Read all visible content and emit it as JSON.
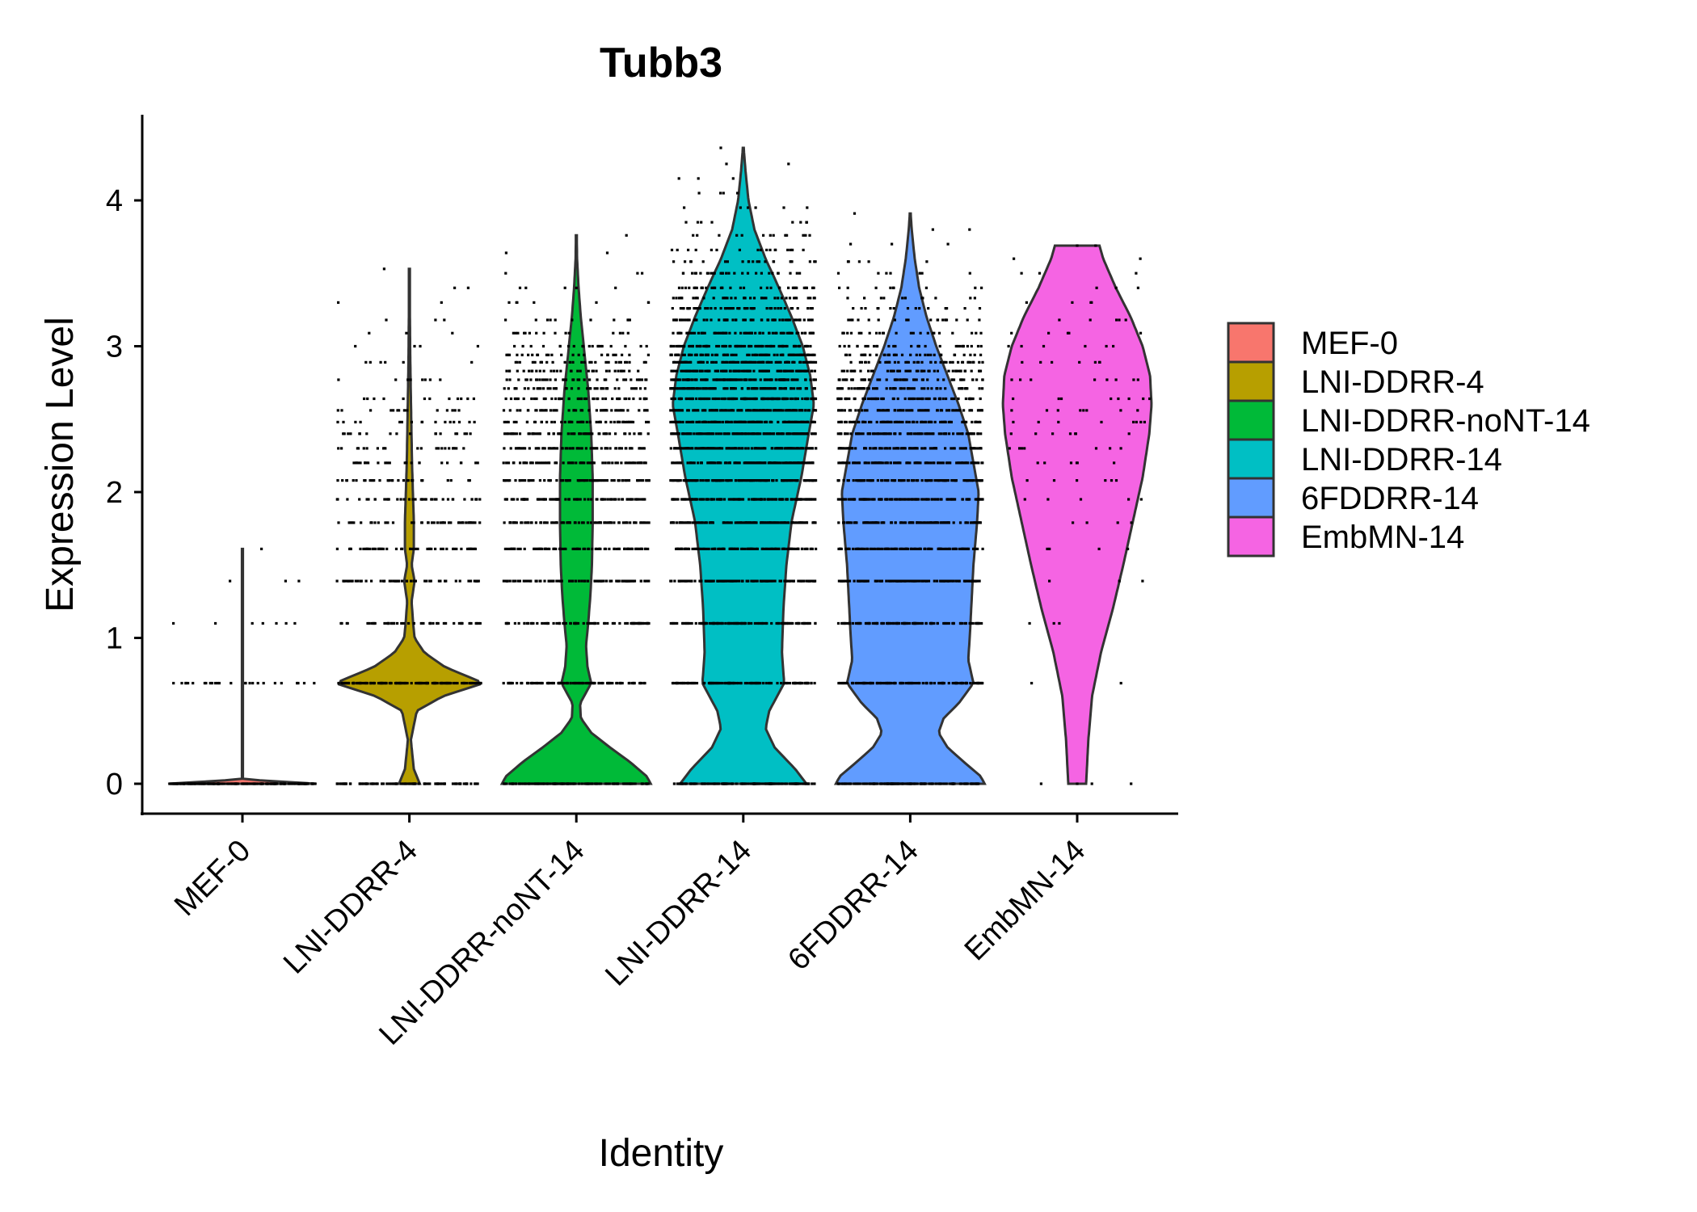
{
  "chart_data": {
    "type": "violin",
    "title": "Tubb3",
    "xlabel": "Identity",
    "ylabel": "Expression Level",
    "ylim": [
      -0.2,
      4.6
    ],
    "yticks": [
      0,
      1,
      2,
      3,
      4
    ],
    "grid": false,
    "legend_position": "right",
    "categories": [
      "MEF-0",
      "LNI-DDRR-4",
      "LNI-DDRR-noNT-14",
      "LNI-DDRR-14",
      "6FDDRR-14",
      "EmbMN-14"
    ],
    "series": [
      {
        "name": "MEF-0",
        "color": "#F8766D",
        "max": 1.61,
        "density_profile": [
          [
            0,
            1.0
          ],
          [
            0.03,
            0.0
          ],
          [
            1.61,
            0.0
          ]
        ],
        "point_levels": [
          [
            0,
            160
          ],
          [
            0.69,
            26
          ],
          [
            1.1,
            7
          ],
          [
            1.39,
            3
          ],
          [
            1.61,
            1
          ]
        ]
      },
      {
        "name": "LNI-DDRR-4",
        "color": "#B79F00",
        "max": 3.53,
        "density_profile": [
          [
            0,
            0.14
          ],
          [
            0.1,
            0.06
          ],
          [
            0.3,
            0.02
          ],
          [
            0.5,
            0.1
          ],
          [
            0.6,
            0.45
          ],
          [
            0.69,
            1.0
          ],
          [
            0.8,
            0.48
          ],
          [
            0.9,
            0.2
          ],
          [
            1.0,
            0.07
          ],
          [
            1.1,
            0.05
          ],
          [
            1.25,
            0.03
          ],
          [
            1.39,
            0.07
          ],
          [
            1.5,
            0.03
          ],
          [
            1.61,
            0.06
          ],
          [
            1.8,
            0.06
          ],
          [
            1.95,
            0.05
          ],
          [
            2.2,
            0.035
          ],
          [
            2.5,
            0.025
          ],
          [
            2.9,
            0.012
          ],
          [
            3.2,
            0.007
          ],
          [
            3.53,
            0.005
          ]
        ],
        "point_levels": [
          [
            0,
            90
          ],
          [
            0.69,
            120
          ],
          [
            1.1,
            45
          ],
          [
            1.39,
            55
          ],
          [
            1.61,
            50
          ],
          [
            1.79,
            45
          ],
          [
            1.95,
            38
          ],
          [
            2.08,
            30
          ],
          [
            2.2,
            26
          ],
          [
            2.3,
            22
          ],
          [
            2.4,
            18
          ],
          [
            2.48,
            16
          ],
          [
            2.56,
            14
          ],
          [
            2.64,
            12
          ],
          [
            2.77,
            8
          ],
          [
            2.89,
            6
          ],
          [
            3.0,
            4
          ],
          [
            3.09,
            3
          ],
          [
            3.18,
            3
          ],
          [
            3.3,
            2
          ],
          [
            3.4,
            2
          ],
          [
            3.53,
            1
          ]
        ]
      },
      {
        "name": "LNI-DDRR-noNT-14",
        "color": "#00BA38",
        "max": 3.76,
        "density_profile": [
          [
            0,
            1.0
          ],
          [
            0.05,
            0.95
          ],
          [
            0.15,
            0.72
          ],
          [
            0.25,
            0.45
          ],
          [
            0.35,
            0.2
          ],
          [
            0.45,
            0.06
          ],
          [
            0.55,
            0.05
          ],
          [
            0.69,
            0.2
          ],
          [
            0.8,
            0.15
          ],
          [
            0.95,
            0.13
          ],
          [
            1.1,
            0.16
          ],
          [
            1.3,
            0.19
          ],
          [
            1.5,
            0.21
          ],
          [
            1.8,
            0.22
          ],
          [
            2.1,
            0.22
          ],
          [
            2.4,
            0.2
          ],
          [
            2.7,
            0.16
          ],
          [
            3.0,
            0.1
          ],
          [
            3.2,
            0.06
          ],
          [
            3.4,
            0.03
          ],
          [
            3.6,
            0.01
          ],
          [
            3.76,
            0.005
          ]
        ],
        "point_levels": [
          [
            0,
            110
          ],
          [
            0.69,
            90
          ],
          [
            1.1,
            80
          ],
          [
            1.39,
            85
          ],
          [
            1.61,
            85
          ],
          [
            1.79,
            85
          ],
          [
            1.95,
            80
          ],
          [
            2.08,
            75
          ],
          [
            2.2,
            70
          ],
          [
            2.3,
            65
          ],
          [
            2.4,
            60
          ],
          [
            2.48,
            55
          ],
          [
            2.56,
            50
          ],
          [
            2.64,
            45
          ],
          [
            2.71,
            40
          ],
          [
            2.77,
            36
          ],
          [
            2.83,
            32
          ],
          [
            2.89,
            28
          ],
          [
            2.94,
            25
          ],
          [
            3.0,
            20
          ],
          [
            3.09,
            15
          ],
          [
            3.18,
            11
          ],
          [
            3.3,
            7
          ],
          [
            3.4,
            5
          ],
          [
            3.5,
            3
          ],
          [
            3.64,
            2
          ],
          [
            3.76,
            1
          ]
        ]
      },
      {
        "name": "LNI-DDRR-14",
        "color": "#00BFC4",
        "max": 4.36,
        "density_profile": [
          [
            0,
            0.85
          ],
          [
            0.1,
            0.7
          ],
          [
            0.25,
            0.42
          ],
          [
            0.38,
            0.3
          ],
          [
            0.5,
            0.35
          ],
          [
            0.69,
            0.55
          ],
          [
            0.9,
            0.52
          ],
          [
            1.2,
            0.54
          ],
          [
            1.5,
            0.58
          ],
          [
            1.8,
            0.65
          ],
          [
            2.1,
            0.78
          ],
          [
            2.4,
            0.88
          ],
          [
            2.6,
            0.95
          ],
          [
            2.8,
            0.9
          ],
          [
            3.0,
            0.8
          ],
          [
            3.2,
            0.65
          ],
          [
            3.4,
            0.48
          ],
          [
            3.6,
            0.3
          ],
          [
            3.8,
            0.15
          ],
          [
            4.0,
            0.07
          ],
          [
            4.2,
            0.03
          ],
          [
            4.36,
            0.005
          ]
        ],
        "point_levels": [
          [
            0,
            120
          ],
          [
            0.69,
            110
          ],
          [
            1.1,
            110
          ],
          [
            1.39,
            115
          ],
          [
            1.61,
            120
          ],
          [
            1.79,
            125
          ],
          [
            1.95,
            130
          ],
          [
            2.08,
            130
          ],
          [
            2.2,
            130
          ],
          [
            2.3,
            130
          ],
          [
            2.4,
            130
          ],
          [
            2.48,
            125
          ],
          [
            2.56,
            120
          ],
          [
            2.64,
            115
          ],
          [
            2.71,
            110
          ],
          [
            2.77,
            105
          ],
          [
            2.83,
            100
          ],
          [
            2.89,
            95
          ],
          [
            2.94,
            90
          ],
          [
            3.0,
            80
          ],
          [
            3.09,
            70
          ],
          [
            3.18,
            60
          ],
          [
            3.26,
            50
          ],
          [
            3.33,
            42
          ],
          [
            3.4,
            35
          ],
          [
            3.5,
            28
          ],
          [
            3.58,
            22
          ],
          [
            3.66,
            17
          ],
          [
            3.76,
            13
          ],
          [
            3.85,
            9
          ],
          [
            3.95,
            6
          ],
          [
            4.05,
            4
          ],
          [
            4.15,
            3
          ],
          [
            4.25,
            2
          ],
          [
            4.36,
            1
          ]
        ]
      },
      {
        "name": "6FDDRR-14",
        "color": "#619CFF",
        "max": 3.91,
        "density_profile": [
          [
            0,
            1.0
          ],
          [
            0.05,
            0.95
          ],
          [
            0.15,
            0.72
          ],
          [
            0.25,
            0.5
          ],
          [
            0.35,
            0.38
          ],
          [
            0.45,
            0.45
          ],
          [
            0.55,
            0.65
          ],
          [
            0.69,
            0.85
          ],
          [
            0.85,
            0.78
          ],
          [
            1.0,
            0.8
          ],
          [
            1.2,
            0.82
          ],
          [
            1.5,
            0.85
          ],
          [
            1.8,
            0.9
          ],
          [
            2.0,
            0.92
          ],
          [
            2.2,
            0.85
          ],
          [
            2.4,
            0.78
          ],
          [
            2.6,
            0.65
          ],
          [
            2.8,
            0.5
          ],
          [
            3.0,
            0.35
          ],
          [
            3.2,
            0.22
          ],
          [
            3.4,
            0.12
          ],
          [
            3.6,
            0.06
          ],
          [
            3.8,
            0.02
          ],
          [
            3.91,
            0.005
          ]
        ],
        "point_levels": [
          [
            0,
            120
          ],
          [
            0.69,
            110
          ],
          [
            1.1,
            100
          ],
          [
            1.39,
            105
          ],
          [
            1.61,
            110
          ],
          [
            1.79,
            110
          ],
          [
            1.95,
            105
          ],
          [
            2.08,
            100
          ],
          [
            2.2,
            95
          ],
          [
            2.3,
            90
          ],
          [
            2.4,
            85
          ],
          [
            2.48,
            80
          ],
          [
            2.56,
            72
          ],
          [
            2.64,
            65
          ],
          [
            2.71,
            58
          ],
          [
            2.77,
            52
          ],
          [
            2.83,
            46
          ],
          [
            2.89,
            40
          ],
          [
            2.94,
            35
          ],
          [
            3.0,
            30
          ],
          [
            3.09,
            24
          ],
          [
            3.18,
            19
          ],
          [
            3.26,
            15
          ],
          [
            3.33,
            12
          ],
          [
            3.4,
            9
          ],
          [
            3.5,
            7
          ],
          [
            3.58,
            5
          ],
          [
            3.7,
            3
          ],
          [
            3.8,
            2
          ],
          [
            3.91,
            1
          ]
        ]
      },
      {
        "name": "EmbMN-14",
        "color": "#F564E3",
        "max": 3.69,
        "density_profile": [
          [
            0,
            0.12
          ],
          [
            0.3,
            0.15
          ],
          [
            0.6,
            0.2
          ],
          [
            0.9,
            0.32
          ],
          [
            1.2,
            0.48
          ],
          [
            1.5,
            0.62
          ],
          [
            1.8,
            0.75
          ],
          [
            2.1,
            0.88
          ],
          [
            2.4,
            0.97
          ],
          [
            2.6,
            1.0
          ],
          [
            2.8,
            0.98
          ],
          [
            3.0,
            0.88
          ],
          [
            3.2,
            0.72
          ],
          [
            3.4,
            0.52
          ],
          [
            3.6,
            0.35
          ],
          [
            3.69,
            0.3
          ]
        ],
        "point_levels": [
          [
            0,
            4
          ],
          [
            0.69,
            2
          ],
          [
            1.1,
            3
          ],
          [
            1.39,
            3
          ],
          [
            1.61,
            4
          ],
          [
            1.79,
            4
          ],
          [
            1.95,
            5
          ],
          [
            2.08,
            6
          ],
          [
            2.2,
            6
          ],
          [
            2.3,
            7
          ],
          [
            2.4,
            7
          ],
          [
            2.48,
            8
          ],
          [
            2.56,
            8
          ],
          [
            2.64,
            8
          ],
          [
            2.77,
            8
          ],
          [
            2.89,
            7
          ],
          [
            3.0,
            6
          ],
          [
            3.09,
            5
          ],
          [
            3.18,
            5
          ],
          [
            3.3,
            4
          ],
          [
            3.4,
            3
          ],
          [
            3.5,
            3
          ],
          [
            3.6,
            2
          ],
          [
            3.69,
            2
          ]
        ]
      }
    ]
  }
}
